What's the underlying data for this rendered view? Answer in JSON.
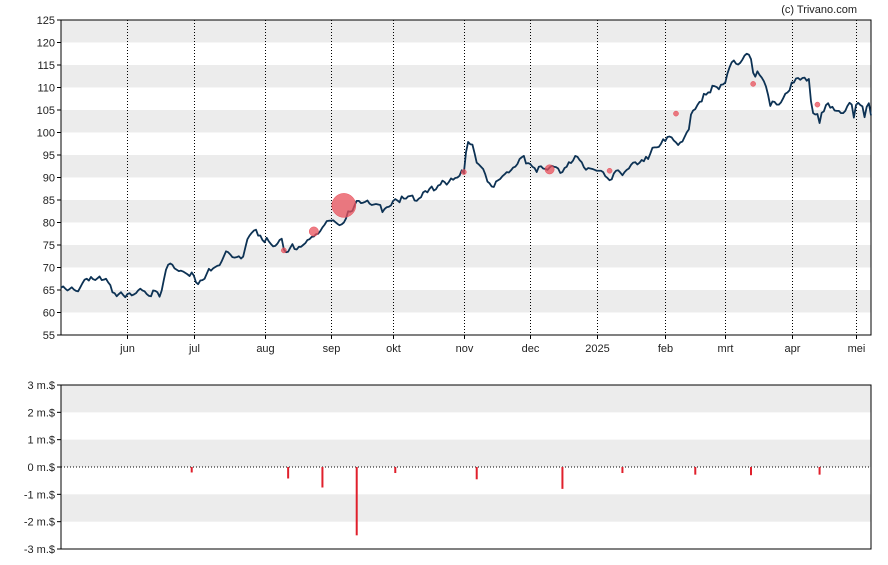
{
  "credit": "(c) Trivano.com",
  "colors": {
    "price_line": "#0d3254",
    "bubble": "#e8505b",
    "volume_bar": "#e0202c",
    "band": "#ececec",
    "vgrid": "#000000"
  },
  "chart_data": [
    {
      "type": "line",
      "title": "",
      "xlabel": "",
      "ylabel": "",
      "ylim": [
        55,
        125
      ],
      "yticks": [
        55,
        60,
        65,
        70,
        75,
        80,
        85,
        90,
        95,
        100,
        105,
        110,
        115,
        120,
        125
      ],
      "grid": "alternating horizontal bands, dotted vertical month lines",
      "month_labels": [
        {
          "label": "jun",
          "index": 31
        },
        {
          "label": "jul",
          "index": 62
        },
        {
          "label": "aug",
          "index": 95
        },
        {
          "label": "sep",
          "index": 126
        },
        {
          "label": "okt",
          "index": 155
        },
        {
          "label": "nov",
          "index": 188
        },
        {
          "label": "dec",
          "index": 219
        },
        {
          "label": "2025",
          "index": 250
        },
        {
          "label": "feb",
          "index": 282
        },
        {
          "label": "mrt",
          "index": 310
        },
        {
          "label": "apr",
          "index": 341
        },
        {
          "label": "mei",
          "index": 371
        }
      ],
      "series": [
        {
          "values": [
            65.5,
            65.8,
            65.3,
            64.9,
            65.2,
            65.6,
            65.1,
            64.8,
            64.7,
            65.6,
            66.5,
            67.3,
            67.5,
            67.1,
            67.9,
            67.4,
            67.2,
            67.6,
            68.0,
            67.2,
            67.3,
            67.5,
            66.7,
            66.1,
            64.5,
            64.3,
            63.6,
            64.1,
            64.5,
            63.9,
            63.4,
            64.1,
            64.3,
            63.8,
            64.0,
            64.3,
            64.9,
            65.3,
            64.9,
            64.7,
            64.1,
            63.7,
            63.6,
            64.9,
            64.8,
            64.5,
            63.5,
            64.9,
            67.3,
            69.5,
            70.6,
            70.9,
            70.6,
            69.8,
            69.5,
            69.2,
            69.3,
            69.1,
            68.8,
            68.5,
            68.1,
            68.9,
            68.2,
            66.7,
            66.3,
            67.1,
            67.2,
            67.5,
            68.6,
            69.7,
            69.3,
            69.8,
            70.1,
            70.4,
            70.5,
            71.4,
            72.5,
            73.6,
            73.4,
            72.9,
            72.3,
            72.2,
            72.3,
            72.5,
            72.0,
            72.4,
            74.4,
            76.3,
            77.1,
            77.7,
            78.2,
            78.4,
            77.1,
            77.1,
            76.1,
            75.6,
            76.6,
            75.8,
            75.2,
            74.7,
            74.8,
            75.3,
            76.1,
            76.4,
            74.0,
            73.4,
            73.5,
            74.4,
            75.2,
            74.1,
            74.0,
            74.6,
            74.6,
            75.0,
            75.4,
            76.1,
            76.3,
            76.8,
            76.9,
            77.4,
            77.5,
            78.1,
            78.9,
            79.5,
            80.3,
            80.4,
            80.4,
            80.5,
            80.1,
            79.7,
            79.4,
            79.6,
            80.0,
            80.9,
            82.5,
            82.4,
            82.6,
            83.8,
            84.8,
            84.8,
            84.3,
            84.4,
            84.6,
            84.9,
            84.2,
            83.9,
            84.0,
            84.1,
            84.0,
            83.9,
            82.3,
            83.0,
            83.4,
            83.5,
            83.8,
            84.8,
            85.2,
            84.9,
            84.5,
            85.8,
            85.3,
            85.3,
            85.8,
            85.9,
            86.0,
            84.9,
            84.8,
            85.3,
            85.6,
            86.7,
            87.0,
            86.7,
            87.5,
            88.0,
            87.1,
            87.4,
            88.2,
            88.4,
            89.3,
            89.0,
            88.4,
            89.0,
            89.8,
            89.5,
            89.9,
            90.0,
            90.4,
            91.6,
            91.0,
            95.6,
            97.9,
            97.4,
            97.3,
            95.4,
            93.3,
            92.9,
            92.4,
            91.9,
            90.7,
            89.1,
            88.7,
            88.0,
            87.9,
            89.1,
            89.4,
            89.7,
            90.3,
            90.7,
            91.2,
            91.1,
            91.6,
            92.2,
            92.4,
            93.0,
            94.1,
            94.5,
            94.8,
            93.1,
            93.2,
            93.0,
            92.4,
            92.1,
            91.2,
            92.4,
            92.5,
            92.0,
            91.9,
            91.7,
            92.2,
            92.6,
            92.4,
            92.3,
            92.0,
            91.0,
            91.2,
            92.1,
            92.4,
            93.4,
            93.2,
            93.8,
            94.8,
            94.6,
            93.9,
            93.4,
            92.3,
            91.7,
            92.1,
            92.0,
            91.9,
            91.7,
            91.5,
            91.5,
            91.5,
            91.2,
            90.3,
            89.9,
            89.4,
            89.6,
            90.9,
            91.5,
            91.6,
            91.1,
            90.5,
            91.2,
            91.7,
            92.0,
            92.8,
            93.3,
            93.4,
            92.9,
            93.3,
            93.9,
            93.6,
            94.6,
            94.1,
            95.3,
            96.6,
            96.7,
            96.7,
            96.8,
            97.5,
            98.5,
            98.1,
            99.0,
            99.1,
            98.9,
            98.2,
            97.8,
            97.2,
            97.8,
            98.0,
            99.0,
            100.0,
            100.7,
            104.0,
            104.9,
            105.2,
            106.1,
            106.8,
            106.9,
            108.6,
            108.4,
            108.9,
            108.9,
            110.4,
            110.3,
            110.1,
            109.6,
            110.6,
            110.7,
            111.1,
            113.1,
            114.5,
            115.6,
            116.0,
            115.3,
            115.1,
            115.5,
            116.2,
            117.1,
            117.5,
            117.3,
            116.3,
            113.3,
            112.4,
            113.6,
            112.8,
            112.2,
            111.4,
            110.2,
            108.3,
            105.9,
            106.9,
            106.8,
            106.2,
            106.2,
            106.7,
            107.6,
            108.6,
            108.9,
            109.4,
            111.1,
            111.1,
            112.0,
            112.1,
            111.7,
            112.1,
            112.2,
            111.5,
            111.9,
            106.9,
            104.3,
            104.0,
            104.1,
            102.1,
            104.4,
            104.7,
            106.1,
            106.5,
            105.5,
            105.7,
            104.9,
            104.8,
            104.8,
            104.3,
            104.3,
            104.8,
            105.9,
            106.6,
            106.2,
            103.3,
            106.1,
            106.6,
            106.1,
            105.8,
            103.4,
            105.7,
            106.5,
            103.8
          ],
          "color": "#0d3254"
        }
      ],
      "trade_markers": [
        {
          "index": 104,
          "value": 73.8,
          "size": 1
        },
        {
          "index": 118,
          "value": 78.0,
          "size": 3
        },
        {
          "index": 132,
          "value": 83.8,
          "size": 10
        },
        {
          "index": 188,
          "value": 91.2,
          "size": 1
        },
        {
          "index": 228,
          "value": 91.8,
          "size": 3
        },
        {
          "index": 256,
          "value": 91.5,
          "size": 1
        },
        {
          "index": 287,
          "value": 104.2,
          "size": 1
        },
        {
          "index": 323,
          "value": 110.8,
          "size": 1
        },
        {
          "index": 353,
          "value": 106.2,
          "size": 1
        }
      ]
    },
    {
      "type": "bar",
      "title": "",
      "ylabel": "",
      "ylim": [
        -3,
        3
      ],
      "yticks": [
        {
          "value": 3,
          "label": "3 m.$"
        },
        {
          "value": 2,
          "label": "2 m.$"
        },
        {
          "value": 1,
          "label": "1 m.$"
        },
        {
          "value": 0,
          "label": "0 m.$"
        },
        {
          "value": -1,
          "label": "-1 m.$"
        },
        {
          "value": -2,
          "label": "-2 m.$"
        },
        {
          "value": -3,
          "label": "-3 m.$"
        }
      ],
      "grid": "alternating horizontal bands",
      "bars": [
        {
          "index": 61,
          "value": -0.2
        },
        {
          "index": 106,
          "value": -0.42
        },
        {
          "index": 122,
          "value": -0.75
        },
        {
          "index": 138,
          "value": -2.5
        },
        {
          "index": 156,
          "value": -0.22
        },
        {
          "index": 194,
          "value": -0.45
        },
        {
          "index": 234,
          "value": -0.8
        },
        {
          "index": 262,
          "value": -0.22
        },
        {
          "index": 296,
          "value": -0.28
        },
        {
          "index": 322,
          "value": -0.3
        },
        {
          "index": 354,
          "value": -0.28
        }
      ]
    }
  ]
}
